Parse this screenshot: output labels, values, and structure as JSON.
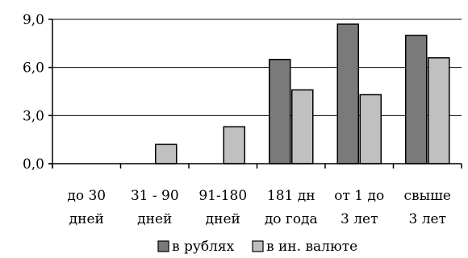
{
  "chart_data": {
    "type": "bar",
    "categories": [
      [
        "до 30",
        "дней"
      ],
      [
        "31 - 90",
        "дней"
      ],
      [
        "91-180",
        "дней"
      ],
      [
        "181 дн",
        "до года"
      ],
      [
        "от 1 до",
        "3 лет"
      ],
      [
        "свыше",
        "3 лет"
      ]
    ],
    "series": [
      {
        "name": "в рублях",
        "color": "#7a7a7a",
        "values": [
          0,
          0,
          0,
          6.5,
          8.7,
          8.0
        ]
      },
      {
        "name": "в ин. валюте",
        "color": "#c0c0c0",
        "values": [
          0,
          1.2,
          2.3,
          4.6,
          4.3,
          6.6
        ]
      }
    ],
    "yticks": [
      "0,0",
      "3,0",
      "6,0",
      "9,0"
    ],
    "ytick_values": [
      0,
      3,
      6,
      9
    ],
    "ylim": [
      0,
      9
    ],
    "grid": true,
    "legend_position": "bottom"
  }
}
